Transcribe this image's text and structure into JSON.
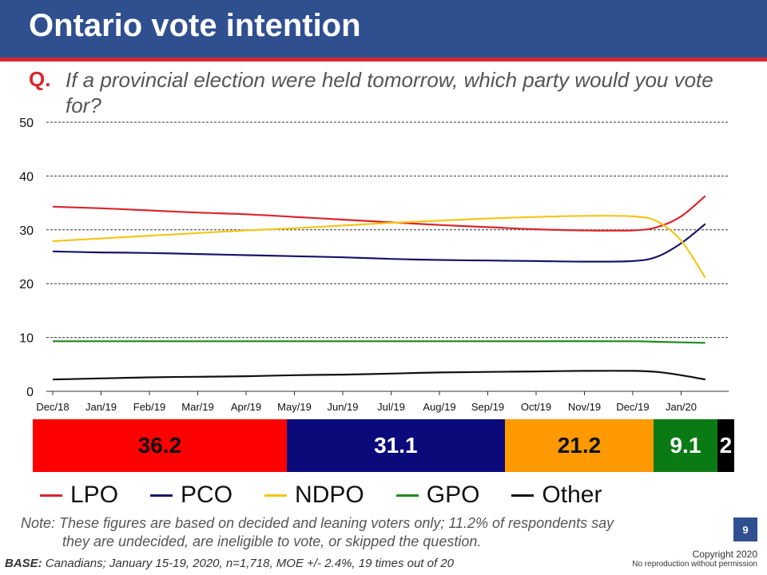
{
  "header": {
    "title": "Ontario vote intention",
    "question_label": "Q.",
    "question_text": "If a provincial election were held tomorrow, which party would you vote for?"
  },
  "chart_data": {
    "type": "line",
    "x": [
      "Dec/18",
      "Jan/19",
      "Feb/19",
      "Mar/19",
      "Apr/19",
      "May/19",
      "Jun/19",
      "Jul/19",
      "Aug/19",
      "Sep/19",
      "Oct/19",
      "Nov/19",
      "Dec/19",
      "Jan/20"
    ],
    "ylim": [
      0,
      50
    ],
    "yticks": [
      0,
      10,
      20,
      30,
      40,
      50
    ],
    "grid": true,
    "series": [
      {
        "name": "LPO",
        "color": "#d9262c",
        "points": [
          [
            0,
            34.3
          ],
          [
            1,
            34.0
          ],
          [
            2,
            33.6
          ],
          [
            3,
            33.2
          ],
          [
            4,
            32.9
          ],
          [
            5,
            32.4
          ],
          [
            6,
            31.9
          ],
          [
            7,
            31.4
          ],
          [
            8,
            30.9
          ],
          [
            9,
            30.5
          ],
          [
            10,
            30.1
          ],
          [
            11,
            29.9
          ],
          [
            12,
            29.9
          ],
          [
            12.5,
            30.5
          ],
          [
            13,
            32.5
          ],
          [
            13.5,
            36.3
          ]
        ]
      },
      {
        "name": "PCO",
        "color": "#16166b",
        "points": [
          [
            0,
            26.0
          ],
          [
            1,
            25.8
          ],
          [
            2,
            25.7
          ],
          [
            3,
            25.5
          ],
          [
            4,
            25.3
          ],
          [
            5,
            25.1
          ],
          [
            6,
            24.9
          ],
          [
            7,
            24.6
          ],
          [
            8,
            24.4
          ],
          [
            9,
            24.3
          ],
          [
            10,
            24.2
          ],
          [
            11,
            24.1
          ],
          [
            12,
            24.2
          ],
          [
            12.5,
            25.0
          ],
          [
            13,
            27.5
          ],
          [
            13.5,
            31.1
          ]
        ]
      },
      {
        "name": "NDPO",
        "color": "#f5c518",
        "points": [
          [
            0,
            27.9
          ],
          [
            1,
            28.4
          ],
          [
            2,
            28.9
          ],
          [
            3,
            29.4
          ],
          [
            4,
            29.9
          ],
          [
            5,
            30.3
          ],
          [
            6,
            30.8
          ],
          [
            7,
            31.3
          ],
          [
            8,
            31.7
          ],
          [
            9,
            32.1
          ],
          [
            10,
            32.4
          ],
          [
            11,
            32.6
          ],
          [
            12,
            32.5
          ],
          [
            12.5,
            31.6
          ],
          [
            13,
            28.0
          ],
          [
            13.5,
            21.1
          ]
        ]
      },
      {
        "name": "GPO",
        "color": "#1e8a1e",
        "points": [
          [
            0,
            9.3
          ],
          [
            2,
            9.3
          ],
          [
            4,
            9.3
          ],
          [
            6,
            9.3
          ],
          [
            8,
            9.3
          ],
          [
            10,
            9.3
          ],
          [
            12,
            9.3
          ],
          [
            12.5,
            9.2
          ],
          [
            13,
            9.1
          ],
          [
            13.5,
            9.0
          ]
        ]
      },
      {
        "name": "Other",
        "color": "#111111",
        "points": [
          [
            0,
            2.2
          ],
          [
            1,
            2.4
          ],
          [
            2,
            2.6
          ],
          [
            3,
            2.7
          ],
          [
            4,
            2.8
          ],
          [
            5,
            3.0
          ],
          [
            6,
            3.1
          ],
          [
            7,
            3.3
          ],
          [
            8,
            3.5
          ],
          [
            9,
            3.6
          ],
          [
            10,
            3.7
          ],
          [
            11,
            3.8
          ],
          [
            12,
            3.8
          ],
          [
            12.5,
            3.6
          ],
          [
            13,
            3.0
          ],
          [
            13.5,
            2.2
          ]
        ]
      }
    ],
    "summary_bar": [
      {
        "party": "LPO",
        "value": 36.2,
        "label": "36.2",
        "color": "#ff0000",
        "text_color": "#111111"
      },
      {
        "party": "PCO",
        "value": 31.1,
        "label": "31.1",
        "color": "#0a0a7a",
        "text_color": "#ffffff"
      },
      {
        "party": "NDPO",
        "value": 21.2,
        "label": "21.2",
        "color": "#ff9900",
        "text_color": "#111111"
      },
      {
        "party": "GPO",
        "value": 9.1,
        "label": "9.1",
        "color": "#0a7a14",
        "text_color": "#ffffff"
      },
      {
        "party": "Other",
        "value": 2.4,
        "label": "2",
        "color": "#000000",
        "text_color": "#ffffff"
      }
    ],
    "legend": [
      "LPO",
      "PCO",
      "NDPO",
      "GPO",
      "Other"
    ]
  },
  "footer": {
    "note_line1": "Note: These figures are based on decided and leaning voters only; 11.2% of respondents say",
    "note_line2": "they are undecided, are ineligible to vote, or skipped the question.",
    "base_label": "BASE:",
    "base_text": "Canadians; January 15-19, 2020, n=1,718, MOE +/- 2.4%, 19 times out of 20",
    "page_number": "9",
    "copyright": "Copyright 2020",
    "copyright_sub": "No reproduction without permission"
  }
}
